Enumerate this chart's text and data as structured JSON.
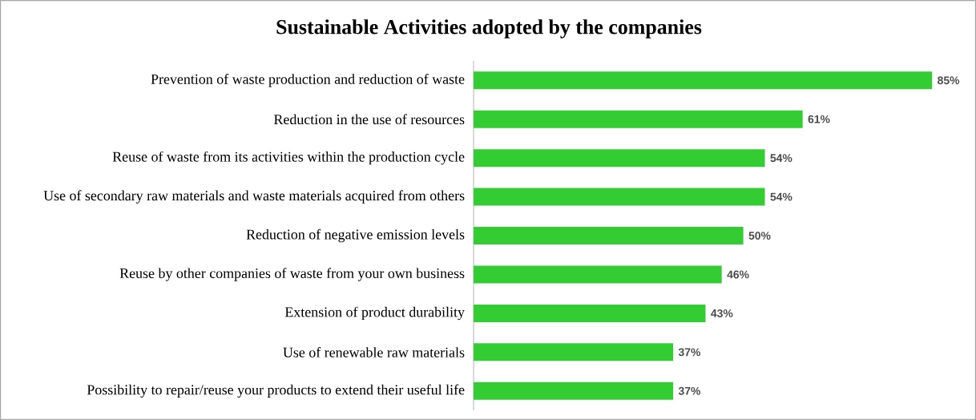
{
  "chart_data": {
    "type": "bar",
    "orientation": "horizontal",
    "title": "Sustainable Activities adopted by the companies",
    "categories": [
      "Prevention of waste production and reduction of waste",
      "Reduction in the use of resources",
      "Reuse of waste from its activities within the production cycle",
      "Use of secondary raw materials and waste materials acquired from others",
      "Reduction of negative emission levels",
      "Reuse by other companies of waste from your own business",
      "Extension of product durability",
      "Use of renewable raw materials",
      "Possibility to repair/reuse your products to extend their useful life"
    ],
    "values": [
      85,
      61,
      54,
      54,
      50,
      46,
      43,
      37,
      37
    ],
    "value_labels": [
      "85%",
      "61%",
      "54%",
      "54%",
      "50%",
      "46%",
      "43%",
      "37%",
      "37%"
    ],
    "color": "#33cc33"
  }
}
